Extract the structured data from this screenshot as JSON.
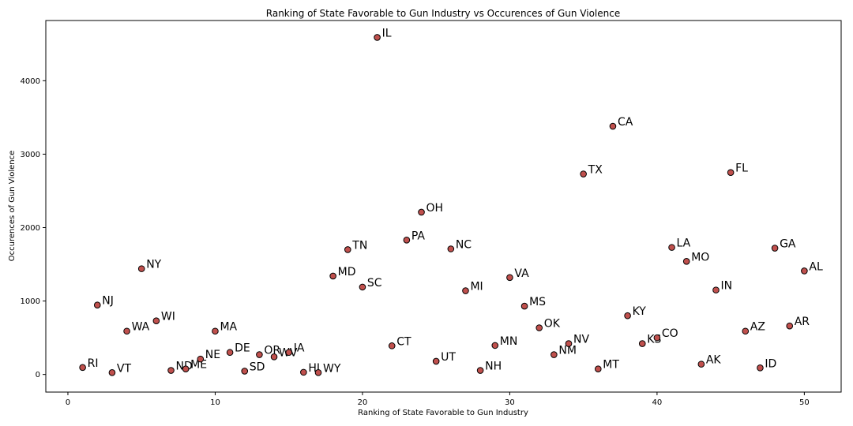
{
  "chart_data": {
    "type": "scatter",
    "title": "Ranking of State Favorable to Gun Industry vs Occurences of Gun Violence",
    "xlabel": "Ranking of State Favorable to Gun Industry",
    "ylabel": "Occurences of Gun Violence",
    "xlim": [
      -1.5,
      52.5
    ],
    "ylim": [
      -240,
      4820
    ],
    "xticks": [
      0,
      10,
      20,
      30,
      40,
      50
    ],
    "yticks": [
      0,
      1000,
      2000,
      3000,
      4000
    ],
    "grid": false,
    "marker_color": "#c0504d",
    "marker_edge_color": "#000000",
    "points": [
      {
        "label": "RI",
        "x": 1,
        "y": 95
      },
      {
        "label": "NJ",
        "x": 2,
        "y": 945
      },
      {
        "label": "VT",
        "x": 3,
        "y": 25
      },
      {
        "label": "WA",
        "x": 4,
        "y": 590
      },
      {
        "label": "NY",
        "x": 5,
        "y": 1440
      },
      {
        "label": "WI",
        "x": 6,
        "y": 730
      },
      {
        "label": "ND",
        "x": 7,
        "y": 55
      },
      {
        "label": "ME",
        "x": 8,
        "y": 75
      },
      {
        "label": "NE",
        "x": 9,
        "y": 210
      },
      {
        "label": "MA",
        "x": 10,
        "y": 590
      },
      {
        "label": "DE",
        "x": 11,
        "y": 300
      },
      {
        "label": "SD",
        "x": 12,
        "y": 45
      },
      {
        "label": "OR",
        "x": 13,
        "y": 270
      },
      {
        "label": "WV",
        "x": 14,
        "y": 240
      },
      {
        "label": "IA",
        "x": 15,
        "y": 300
      },
      {
        "label": "HI",
        "x": 16,
        "y": 30
      },
      {
        "label": "WY",
        "x": 17,
        "y": 25
      },
      {
        "label": "MD",
        "x": 18,
        "y": 1340
      },
      {
        "label": "TN",
        "x": 19,
        "y": 1700
      },
      {
        "label": "SC",
        "x": 20,
        "y": 1190
      },
      {
        "label": "IL",
        "x": 21,
        "y": 4590
      },
      {
        "label": "CT",
        "x": 22,
        "y": 390
      },
      {
        "label": "PA",
        "x": 23,
        "y": 1830
      },
      {
        "label": "OH",
        "x": 24,
        "y": 2210
      },
      {
        "label": "UT",
        "x": 25,
        "y": 180
      },
      {
        "label": "NC",
        "x": 26,
        "y": 1710
      },
      {
        "label": "MI",
        "x": 27,
        "y": 1140
      },
      {
        "label": "NH",
        "x": 28,
        "y": 55
      },
      {
        "label": "MN",
        "x": 29,
        "y": 395
      },
      {
        "label": "VA",
        "x": 30,
        "y": 1320
      },
      {
        "label": "MS",
        "x": 31,
        "y": 930
      },
      {
        "label": "OK",
        "x": 32,
        "y": 635
      },
      {
        "label": "NM",
        "x": 33,
        "y": 270
      },
      {
        "label": "NV",
        "x": 34,
        "y": 420
      },
      {
        "label": "TX",
        "x": 35,
        "y": 2730
      },
      {
        "label": "MT",
        "x": 36,
        "y": 75
      },
      {
        "label": "CA",
        "x": 37,
        "y": 3380
      },
      {
        "label": "KY",
        "x": 38,
        "y": 800
      },
      {
        "label": "KS",
        "x": 39,
        "y": 420
      },
      {
        "label": "CO",
        "x": 40,
        "y": 500
      },
      {
        "label": "LA",
        "x": 41,
        "y": 1730
      },
      {
        "label": "MO",
        "x": 42,
        "y": 1540
      },
      {
        "label": "AK",
        "x": 43,
        "y": 140
      },
      {
        "label": "IN",
        "x": 44,
        "y": 1150
      },
      {
        "label": "FL",
        "x": 45,
        "y": 2750
      },
      {
        "label": "AZ",
        "x": 46,
        "y": 590
      },
      {
        "label": "ID",
        "x": 47,
        "y": 90
      },
      {
        "label": "GA",
        "x": 48,
        "y": 1720
      },
      {
        "label": "AR",
        "x": 49,
        "y": 660
      },
      {
        "label": "AL",
        "x": 50,
        "y": 1410
      }
    ]
  }
}
